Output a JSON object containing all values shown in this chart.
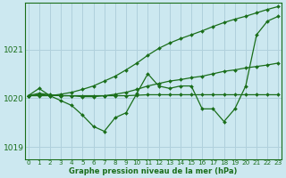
{
  "title": "Graphe pression niveau de la mer (hPa)",
  "background_color": "#cce8f0",
  "grid_color": "#b0d0dc",
  "line_color": "#1a6e1a",
  "hours": [
    0,
    1,
    2,
    3,
    4,
    5,
    6,
    7,
    8,
    9,
    10,
    11,
    12,
    13,
    14,
    15,
    16,
    17,
    18,
    19,
    20,
    21,
    22,
    23
  ],
  "series_zigzag": [
    1020.05,
    1020.2,
    1020.05,
    1019.95,
    1019.85,
    1019.65,
    1019.42,
    1019.32,
    1019.6,
    1019.7,
    1020.1,
    1020.5,
    1020.25,
    1020.2,
    1020.25,
    1020.25,
    1019.78,
    1019.78,
    1019.52,
    1019.78,
    1020.25,
    1021.3,
    1021.58,
    1021.68
  ],
  "series_gentle": [
    1020.05,
    1020.1,
    1020.07,
    1020.05,
    1020.05,
    1020.03,
    1020.03,
    1020.05,
    1020.08,
    1020.12,
    1020.18,
    1020.25,
    1020.3,
    1020.35,
    1020.38,
    1020.42,
    1020.45,
    1020.5,
    1020.55,
    1020.58,
    1020.62,
    1020.65,
    1020.68,
    1020.72
  ],
  "series_flat": [
    1020.05,
    1020.07,
    1020.06,
    1020.05,
    1020.05,
    1020.05,
    1020.05,
    1020.05,
    1020.05,
    1020.05,
    1020.06,
    1020.07,
    1020.07,
    1020.07,
    1020.07,
    1020.07,
    1020.07,
    1020.07,
    1020.07,
    1020.07,
    1020.07,
    1020.07,
    1020.07,
    1020.07
  ],
  "series_steep": [
    1020.05,
    1020.05,
    1020.05,
    1020.08,
    1020.12,
    1020.18,
    1020.25,
    1020.35,
    1020.45,
    1020.58,
    1020.72,
    1020.88,
    1021.02,
    1021.13,
    1021.22,
    1021.3,
    1021.38,
    1021.47,
    1021.55,
    1021.62,
    1021.68,
    1021.75,
    1021.82,
    1021.88
  ],
  "ylim": [
    1018.75,
    1021.95
  ],
  "yticks": [
    1019,
    1020,
    1021
  ],
  "xlim": [
    -0.3,
    23.3
  ]
}
